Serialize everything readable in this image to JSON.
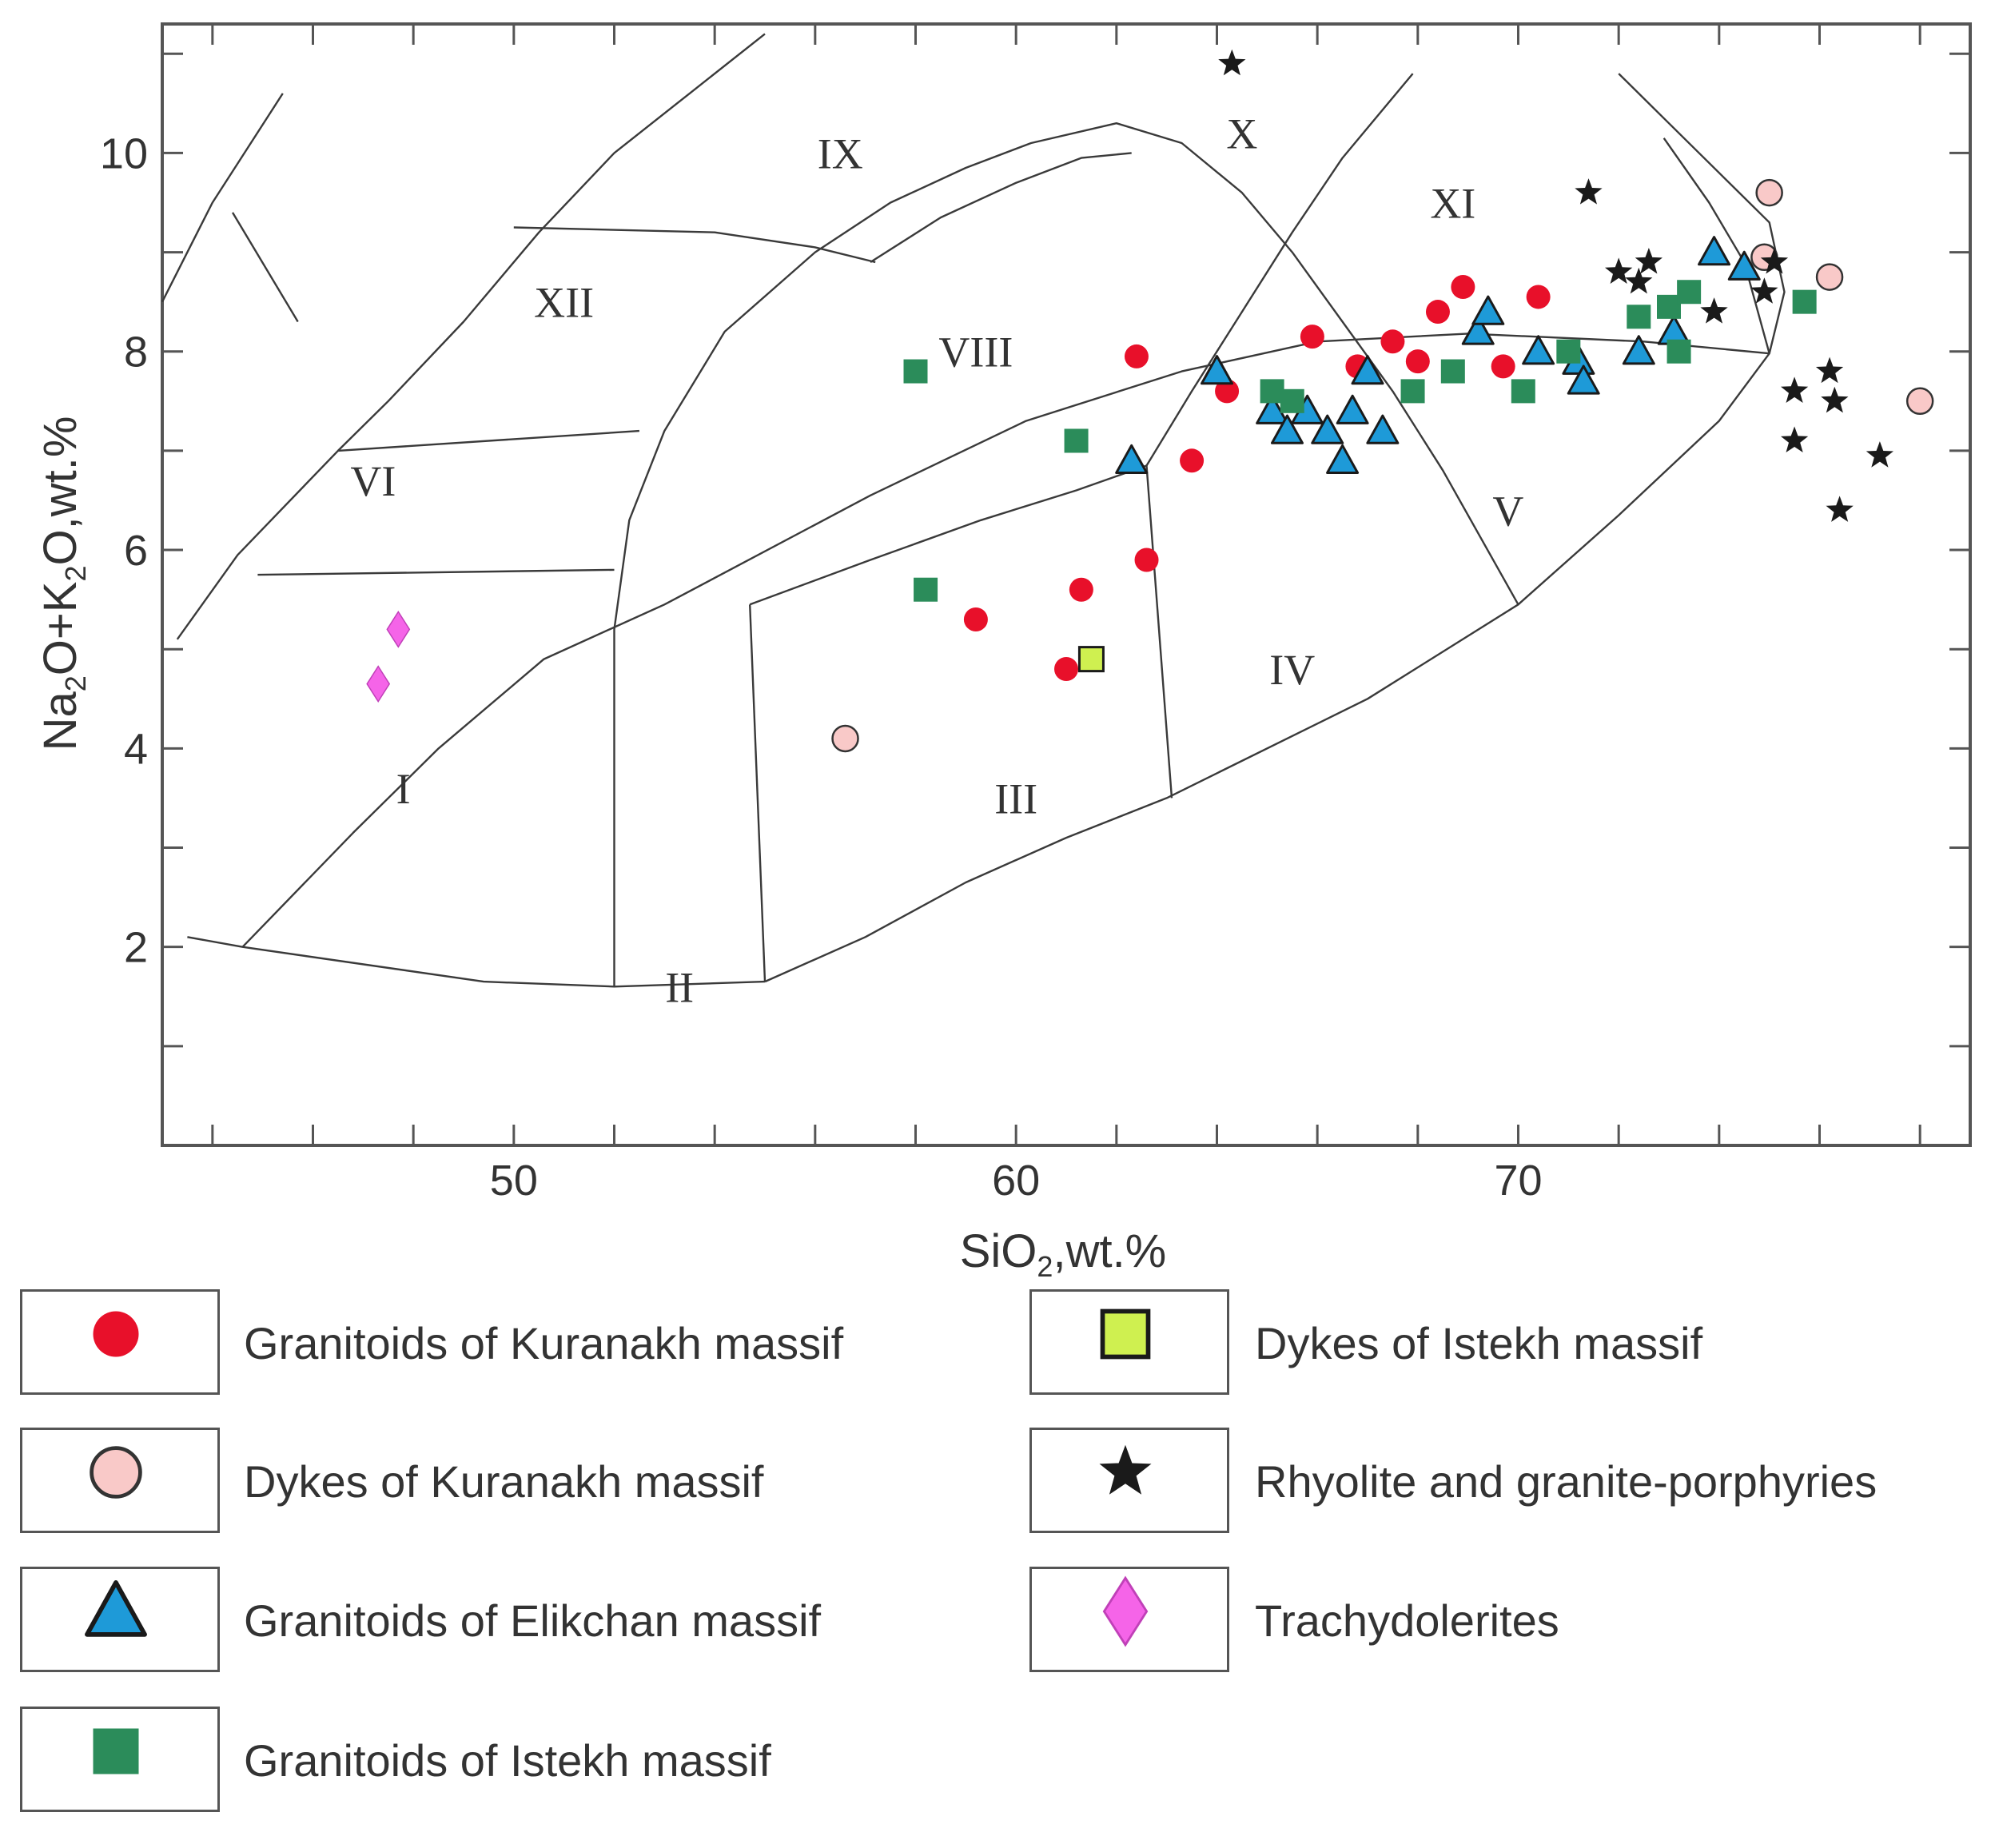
{
  "chart_data": {
    "type": "scatter",
    "title": "",
    "xlabel_main": "SiO",
    "xlabel_sub": "2",
    "xlabel_rest": ",wt.%",
    "ylabel_parts": [
      {
        "text": "Na",
        "sub": false
      },
      {
        "text": "2",
        "sub": true
      },
      {
        "text": "O+K",
        "sub": false
      },
      {
        "text": "2",
        "sub": true
      },
      {
        "text": "O,wt.%",
        "sub": false
      }
    ],
    "xlim": [
      43,
      79
    ],
    "ylim": [
      0,
      11.3
    ],
    "x_tick_labels": [
      {
        "value": 50,
        "label": "50"
      },
      {
        "value": 60,
        "label": "60"
      },
      {
        "value": 70,
        "label": "70"
      }
    ],
    "y_tick_labels": [
      {
        "value": 2,
        "label": "2"
      },
      {
        "value": 4,
        "label": "4"
      },
      {
        "value": 6,
        "label": "6"
      },
      {
        "value": 8,
        "label": "8"
      },
      {
        "value": 10,
        "label": "10"
      }
    ],
    "field_labels": [
      {
        "text": "I",
        "x": 47.8,
        "y": 3.6
      },
      {
        "text": "II",
        "x": 53.3,
        "y": 1.6
      },
      {
        "text": "III",
        "x": 60.0,
        "y": 3.5
      },
      {
        "text": "IV",
        "x": 65.5,
        "y": 4.8
      },
      {
        "text": "V",
        "x": 69.8,
        "y": 6.4
      },
      {
        "text": "VI",
        "x": 47.2,
        "y": 6.7
      },
      {
        "text": "VIII",
        "x": 59.2,
        "y": 8.0
      },
      {
        "text": "IX",
        "x": 56.5,
        "y": 10.0
      },
      {
        "text": "X",
        "x": 64.5,
        "y": 10.2
      },
      {
        "text": "XI",
        "x": 68.7,
        "y": 9.5
      },
      {
        "text": "XII",
        "x": 51.0,
        "y": 8.5
      }
    ],
    "field_boundaries": [
      [
        [
          44.6,
          2.0
        ],
        [
          46.8,
          3.15
        ],
        [
          48.5,
          4.0
        ],
        [
          50.6,
          4.9
        ],
        [
          53,
          5.45
        ],
        [
          57.1,
          6.55
        ],
        [
          60.2,
          7.3
        ],
        [
          63.3,
          7.8
        ],
        [
          66,
          8.1
        ],
        [
          69,
          8.18
        ],
        [
          72.5,
          8.1
        ],
        [
          75,
          7.98
        ]
      ],
      [
        [
          43.5,
          2.1
        ],
        [
          44.6,
          2.0
        ],
        [
          49.4,
          1.65
        ],
        [
          52,
          1.6
        ],
        [
          55,
          1.65
        ]
      ],
      [
        [
          55,
          1.65
        ],
        [
          57,
          2.1
        ],
        [
          59,
          2.65
        ],
        [
          61,
          3.1
        ],
        [
          63,
          3.5
        ],
        [
          67,
          4.5
        ],
        [
          70,
          5.45
        ],
        [
          72,
          6.35
        ],
        [
          74,
          7.3
        ],
        [
          75,
          7.98
        ],
        [
          75.3,
          8.6
        ],
        [
          75,
          9.3
        ],
        [
          74,
          9.8
        ],
        [
          73,
          10.3
        ],
        [
          72,
          10.8
        ]
      ],
      [
        [
          52,
          1.6
        ],
        [
          52,
          5.2
        ],
        [
          52.3,
          6.3
        ],
        [
          53,
          7.2
        ],
        [
          54.2,
          8.2
        ],
        [
          56,
          9.0
        ],
        [
          57.5,
          9.5
        ],
        [
          59,
          9.85
        ],
        [
          60.3,
          10.1
        ],
        [
          62,
          10.3
        ],
        [
          63.3,
          10.1
        ],
        [
          64.5,
          9.6
        ],
        [
          65.5,
          9.0
        ],
        [
          66.5,
          8.3
        ],
        [
          67.5,
          7.6
        ],
        [
          68.5,
          6.8
        ],
        [
          70,
          5.45
        ]
      ],
      [
        [
          55,
          1.65
        ],
        [
          54.7,
          5.45
        ]
      ],
      [
        [
          52,
          5.8
        ],
        [
          44.9,
          5.75
        ]
      ],
      [
        [
          54.7,
          5.45
        ],
        [
          57.1,
          5.9
        ],
        [
          59.3,
          6.3
        ],
        [
          61.2,
          6.6
        ],
        [
          62.6,
          6.85
        ]
      ],
      [
        [
          62.6,
          6.85
        ],
        [
          63.1,
          3.5
        ]
      ],
      [
        [
          62.6,
          6.85
        ],
        [
          63.5,
          7.6
        ],
        [
          64.5,
          8.4
        ],
        [
          65.5,
          9.2
        ],
        [
          66.5,
          9.95
        ],
        [
          67.9,
          10.8
        ]
      ],
      [
        [
          46.5,
          7.0
        ],
        [
          52.5,
          7.2
        ]
      ],
      [
        [
          43.3,
          5.1
        ],
        [
          44.5,
          5.95
        ],
        [
          46.5,
          7.0
        ],
        [
          47.5,
          7.5
        ],
        [
          49,
          8.3
        ],
        [
          50.5,
          9.2
        ],
        [
          52,
          10.0
        ],
        [
          53.5,
          10.6
        ],
        [
          55,
          11.2
        ]
      ],
      [
        [
          43,
          8.5
        ],
        [
          44,
          9.5
        ],
        [
          45.4,
          10.6
        ]
      ],
      [
        [
          44.4,
          9.4
        ],
        [
          45.7,
          8.3
        ]
      ],
      [
        [
          50,
          9.25
        ],
        [
          54,
          9.2
        ],
        [
          56,
          9.05
        ],
        [
          57.2,
          8.9
        ]
      ],
      [
        [
          57.1,
          8.9
        ],
        [
          58.5,
          9.35
        ],
        [
          60,
          9.7
        ],
        [
          61.3,
          9.95
        ],
        [
          62.3,
          10.0
        ]
      ],
      [
        [
          72.9,
          10.15
        ],
        [
          73.8,
          9.5
        ],
        [
          74.5,
          8.9
        ],
        [
          75,
          7.98
        ]
      ]
    ],
    "series": [
      {
        "name": "Granitoids of Kuranakh massif",
        "marker": "circle",
        "color": "#e8102a",
        "points": [
          [
            62.4,
            7.95
          ],
          [
            64.2,
            7.6
          ],
          [
            63.5,
            6.9
          ],
          [
            62.6,
            5.9
          ],
          [
            61.3,
            5.6
          ],
          [
            59.2,
            5.3
          ],
          [
            61.0,
            4.8
          ],
          [
            65.9,
            8.15
          ],
          [
            66.8,
            7.85
          ],
          [
            67.5,
            8.1
          ],
          [
            68.0,
            7.9
          ],
          [
            68.4,
            8.4
          ],
          [
            68.9,
            8.65
          ],
          [
            69.7,
            7.85
          ],
          [
            70.4,
            8.55
          ]
        ]
      },
      {
        "name": "Dykes of Kuranakh massif",
        "marker": "open-circle",
        "color": "#f9c9c8",
        "points": [
          [
            56.6,
            4.1
          ],
          [
            75.0,
            9.6
          ],
          [
            74.9,
            8.95
          ],
          [
            76.2,
            8.75
          ],
          [
            78.0,
            7.5
          ]
        ]
      },
      {
        "name": "Granitoids of Elikchan massif",
        "marker": "triangle",
        "color": "#1e9ad8",
        "points": [
          [
            62.3,
            6.9
          ],
          [
            64.0,
            7.8
          ],
          [
            65.1,
            7.4
          ],
          [
            65.4,
            7.2
          ],
          [
            65.8,
            7.4
          ],
          [
            66.2,
            7.2
          ],
          [
            66.5,
            6.9
          ],
          [
            66.7,
            7.4
          ],
          [
            67.0,
            7.8
          ],
          [
            67.3,
            7.2
          ],
          [
            69.2,
            8.2
          ],
          [
            69.4,
            8.4
          ],
          [
            70.4,
            8.0
          ],
          [
            71.2,
            7.9
          ],
          [
            71.3,
            7.7
          ],
          [
            72.4,
            8.0
          ],
          [
            73.1,
            8.2
          ],
          [
            73.9,
            9.0
          ],
          [
            74.5,
            8.85
          ]
        ]
      },
      {
        "name": "Granitoids of Istekh massif",
        "marker": "square",
        "color": "#2b8c5a",
        "points": [
          [
            58.0,
            7.8
          ],
          [
            58.2,
            5.6
          ],
          [
            61.2,
            7.1
          ],
          [
            65.1,
            7.6
          ],
          [
            65.5,
            7.5
          ],
          [
            67.9,
            7.6
          ],
          [
            68.7,
            7.8
          ],
          [
            70.1,
            7.6
          ],
          [
            71.0,
            8.0
          ],
          [
            72.4,
            8.35
          ],
          [
            73.0,
            8.45
          ],
          [
            73.2,
            8.0
          ],
          [
            73.4,
            8.6
          ],
          [
            75.7,
            8.5
          ]
        ]
      },
      {
        "name": "Dykes of Istekh massif",
        "marker": "open-square",
        "color": "#cff050",
        "points": [
          [
            61.5,
            4.9
          ]
        ]
      },
      {
        "name": "Rhyolite and granite-porphyries",
        "marker": "star",
        "color": "#1a1a1a",
        "points": [
          [
            64.3,
            10.9
          ],
          [
            71.4,
            9.6
          ],
          [
            72.0,
            8.8
          ],
          [
            72.4,
            8.7
          ],
          [
            72.6,
            8.9
          ],
          [
            73.9,
            8.4
          ],
          [
            74.9,
            8.6
          ],
          [
            75.1,
            8.9
          ],
          [
            75.5,
            7.6
          ],
          [
            75.5,
            7.1
          ],
          [
            76.2,
            7.8
          ],
          [
            76.3,
            7.5
          ],
          [
            76.4,
            6.4
          ],
          [
            77.2,
            6.95
          ]
        ]
      },
      {
        "name": "Trachydolerites",
        "marker": "diamond",
        "color": "#f564e8",
        "points": [
          [
            47.7,
            5.2
          ],
          [
            47.3,
            4.65
          ]
        ]
      }
    ],
    "legend": [
      {
        "label": "Granitoids of Kuranakh massif",
        "marker": "circle",
        "color": "#e8102a"
      },
      {
        "label": "Dykes of Kuranakh massif",
        "marker": "open-circle",
        "color": "#f9c9c8"
      },
      {
        "label": "Granitoids of Elikchan massif",
        "marker": "triangle",
        "color": "#1e9ad8"
      },
      {
        "label": "Granitoids of Istekh massif",
        "marker": "square",
        "color": "#2b8c5a"
      },
      {
        "label": "Dykes of Istekh massif",
        "marker": "open-square",
        "color": "#cff050"
      },
      {
        "label": "Rhyolite and granite-porphyries",
        "marker": "star",
        "color": "#1a1a1a"
      },
      {
        "label": "Trachydolerites",
        "marker": "diamond",
        "color": "#f564e8"
      }
    ]
  }
}
